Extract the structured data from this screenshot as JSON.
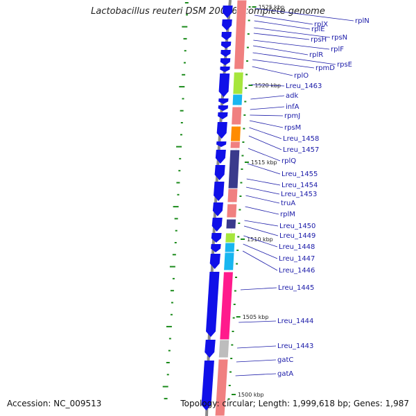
{
  "title": "Lactobacillus reuteri DSM 20016, complete genome",
  "footer": {
    "accession": "Accession: NC_009513",
    "summary": "Topology: circular; Length: 1,999,618 bp; Genes: 1,987"
  },
  "colors": {
    "backbone": "#8a8a8a",
    "gene_arrow": "#1010e8",
    "label_line": "#1a1aa8",
    "label_text": "#1a1aa8",
    "gc_tick": "#1a8a1a",
    "cog_salmon": "#f08080",
    "cog_green": "#a6e63c",
    "cog_cyan": "#19b6f0",
    "cog_orange": "#ff8c00",
    "cog_navy": "#3a3a8c",
    "cog_pink": "#ff1a8c",
    "cog_gray": "#bdbdbd",
    "cog_darkgreen": "#2a9a2a"
  },
  "scale_ticks": [
    "1525 kbp",
    "1520 kbp",
    "1515 kbp",
    "1510 kbp",
    "1505 kbp",
    "1500 kbp"
  ],
  "gene_labels": [
    "rplN",
    "rplX",
    "rplE",
    "rpsN",
    "rpsH",
    "rplF",
    "rplR",
    "rpsE",
    "rpmD",
    "rplO",
    "Lreu_1463",
    "adk",
    "infA",
    "rpmJ",
    "rpsM",
    "Lreu_1458",
    "Lreu_1457",
    "rplQ",
    "Lreu_1455",
    "Lreu_1454",
    "Lreu_1453",
    "truA",
    "rplM",
    "Lreu_1450",
    "Lreu_1449",
    "Lreu_1448",
    "Lreu_1447",
    "Lreu_1446",
    "Lreu_1445",
    "Lreu_1444",
    "Lreu_1443",
    "gatC",
    "gatA"
  ]
}
